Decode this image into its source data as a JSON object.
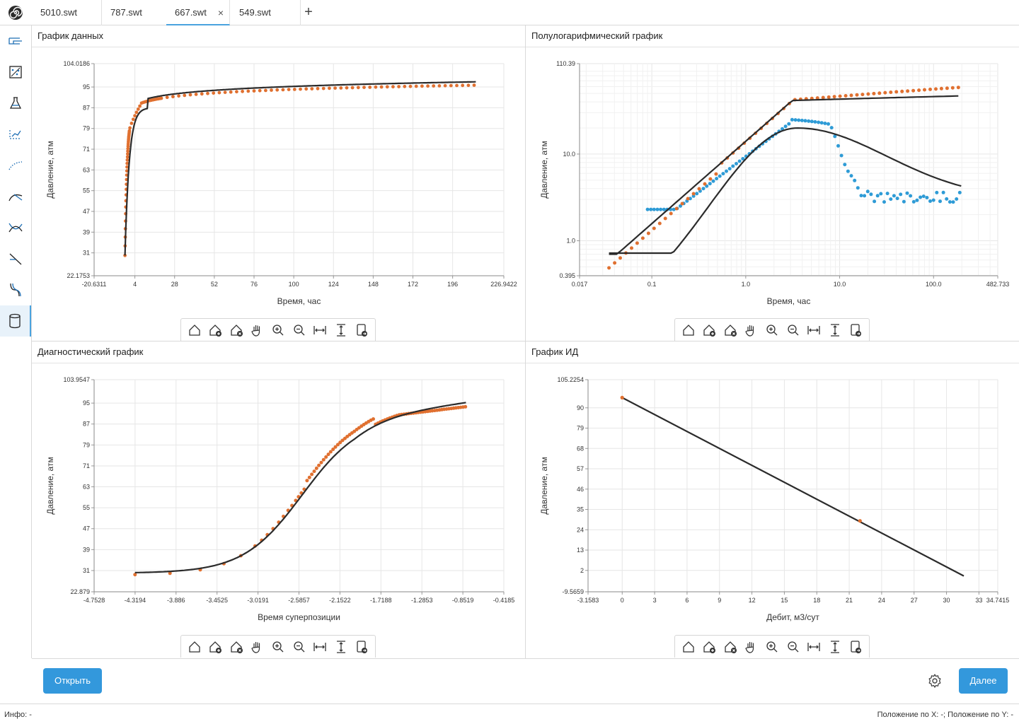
{
  "tabs": [
    {
      "label": "5010.swt",
      "active": false
    },
    {
      "label": "787.swt",
      "active": false
    },
    {
      "label": "667.swt",
      "active": true
    },
    {
      "label": "549.swt",
      "active": false
    }
  ],
  "tab_close": "×",
  "add_tab": "+",
  "sidebar_icons": [
    "tool-1-icon",
    "tool-2-icon",
    "flask-icon",
    "tool-4-icon",
    "curve-dots-icon",
    "curve-icon",
    "cross-curves-icon",
    "line-icon",
    "s-curve-icon",
    "database-icon"
  ],
  "panels": {
    "data": {
      "title": "График данных"
    },
    "semilog": {
      "title": "Полулогарифмический график"
    },
    "diagnostic": {
      "title": "Диагностический график"
    },
    "id": {
      "title": "График ИД"
    }
  },
  "toolbar_icons": [
    "home-icon",
    "home-add-icon",
    "home-remove-icon",
    "pan-icon",
    "zoom-in-icon",
    "zoom-out-icon",
    "fit-width-icon",
    "fit-height-icon",
    "export-icon"
  ],
  "buttons": {
    "open": "Открыть",
    "next": "Далее"
  },
  "status": {
    "info": "Инфо: -",
    "position": "Положение по X: -; Положение по Y: -"
  },
  "colors": {
    "accent": "#3398dc",
    "measured": "#e07030",
    "derivative": "#2e9bd6",
    "model": "#2b2b2b"
  },
  "chart_data": [
    {
      "id": "data",
      "type": "scatter",
      "xlabel": "Время, час",
      "ylabel": "Давление, атм",
      "xlim": [
        -20.6311,
        226.9422
      ],
      "ylim": [
        22.1753,
        104.0186
      ],
      "x_ticks": [
        "-20.6311",
        "4",
        "28",
        "52",
        "76",
        "100",
        "124",
        "148",
        "172",
        "196",
        "226.9422"
      ],
      "y_ticks": [
        "22.1753",
        "31",
        "39",
        "47",
        "55",
        "63",
        "71",
        "79",
        "87",
        "95",
        "104.0186"
      ]
    },
    {
      "id": "semilog",
      "type": "scatter",
      "scale": "log-log",
      "xlabel": "Время, час",
      "ylabel": "Давление, атм",
      "xlim": [
        0.017,
        482.733
      ],
      "ylim": [
        0.395,
        110.39
      ],
      "x_ticks": [
        "0.017",
        "0.1",
        "1.0",
        "10.0",
        "100.0",
        "482.733"
      ],
      "y_ticks": [
        "0.395",
        "1.0",
        "10.0",
        "110.39"
      ]
    },
    {
      "id": "diagnostic",
      "type": "scatter",
      "xlabel": "Время суперпозиции",
      "ylabel": "Давление, атм",
      "xlim": [
        -4.7528,
        -0.4185
      ],
      "ylim": [
        22.879,
        103.9547
      ],
      "x_ticks": [
        "-4.7528",
        "-4.3194",
        "-3.886",
        "-3.4525",
        "-3.0191",
        "-2.5857",
        "-2.1522",
        "-1.7188",
        "-1.2853",
        "-0.8519",
        "-0.4185"
      ],
      "y_ticks": [
        "22.879",
        "31",
        "39",
        "47",
        "55",
        "63",
        "71",
        "79",
        "87",
        "95",
        "103.9547"
      ]
    },
    {
      "id": "id",
      "type": "line",
      "xlabel": "Дебит, м3/сут",
      "ylabel": "Давление, атм",
      "xlim": [
        -3.1583,
        34.7415
      ],
      "ylim": [
        -9.5659,
        105.2254
      ],
      "x_ticks": [
        "-3.1583",
        "0",
        "3",
        "6",
        "9",
        "12",
        "15",
        "18",
        "21",
        "24",
        "27",
        "30",
        "33",
        "34.7415"
      ],
      "y_ticks": [
        "-9.5659",
        "2",
        "13",
        "24",
        "35",
        "46",
        "57",
        "68",
        "79",
        "90",
        "105.2254"
      ],
      "points": [
        {
          "x": 0,
          "y": 95.5
        },
        {
          "x": 22,
          "y": 28.8
        }
      ],
      "line": [
        {
          "x": 0,
          "y": 95.5
        },
        {
          "x": 31.6,
          "y": -1.0
        }
      ]
    }
  ]
}
